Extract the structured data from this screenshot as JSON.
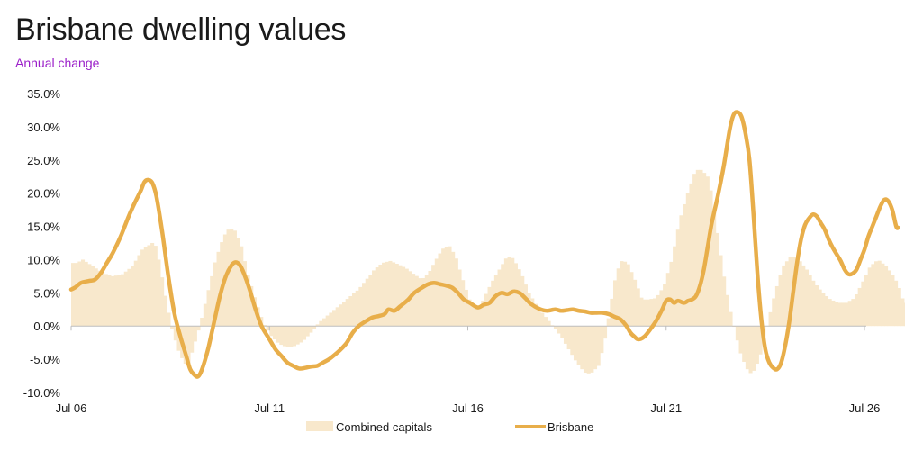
{
  "colors": {
    "brisbane": "#E8AE4A",
    "combined": "#F8E8CC",
    "subtitle": "#9B1FC9",
    "zero_line": "#BDBDBD",
    "axis_tick": "#BDBDBD"
  },
  "chart_data": {
    "type": "line",
    "title": "Brisbane dwelling values",
    "subtitle": "Annual change",
    "x_ticks": [
      "Jul 06",
      "Jul 11",
      "Jul 16",
      "Jul 21",
      "Jul 26"
    ],
    "x_range": [
      "Jul 06",
      "Jul 26"
    ],
    "x_unit": "years since Jul 06",
    "y_ticks": [
      "35.0%",
      "30.0%",
      "25.0%",
      "20.0%",
      "15.0%",
      "10.0%",
      "5.0%",
      "0.0%",
      "-5.0%",
      "-10.0%"
    ],
    "ylim": [
      -10,
      35
    ],
    "grid": false,
    "legend_position": "bottom",
    "series": [
      {
        "name": "Combined capitals",
        "style": "monthly bars",
        "points": [
          [
            0,
            9.5
          ],
          [
            0.1,
            9.5
          ],
          [
            0.25,
            10
          ],
          [
            0.5,
            9
          ],
          [
            0.75,
            8
          ],
          [
            1,
            7.5
          ],
          [
            1.25,
            7.8
          ],
          [
            1.5,
            9
          ],
          [
            1.75,
            11.5
          ],
          [
            2,
            12.5
          ],
          [
            2.1,
            12
          ],
          [
            2.2,
            9
          ],
          [
            2.35,
            4
          ],
          [
            2.5,
            -0.5
          ],
          [
            2.65,
            -3.5
          ],
          [
            2.8,
            -5.5
          ],
          [
            2.9,
            -6
          ],
          [
            3,
            -4
          ],
          [
            3.2,
            0
          ],
          [
            3.4,
            5
          ],
          [
            3.6,
            10
          ],
          [
            3.8,
            13.5
          ],
          [
            3.95,
            14.8
          ],
          [
            4.1,
            14.3
          ],
          [
            4.25,
            12
          ],
          [
            4.4,
            8
          ],
          [
            4.6,
            4
          ],
          [
            4.8,
            0.5
          ],
          [
            5,
            -1.5
          ],
          [
            5.2,
            -2.7
          ],
          [
            5.4,
            -3.2
          ],
          [
            5.6,
            -3
          ],
          [
            5.8,
            -2.3
          ],
          [
            6,
            -1
          ],
          [
            6.2,
            0.5
          ],
          [
            6.4,
            1.5
          ],
          [
            6.6,
            2.5
          ],
          [
            6.8,
            3.5
          ],
          [
            7,
            4.5
          ],
          [
            7.2,
            5.5
          ],
          [
            7.4,
            7
          ],
          [
            7.6,
            8.5
          ],
          [
            7.8,
            9.5
          ],
          [
            8,
            9.8
          ],
          [
            8.2,
            9.3
          ],
          [
            8.4,
            8.7
          ],
          [
            8.6,
            7.8
          ],
          [
            8.8,
            7
          ],
          [
            9,
            8.3
          ],
          [
            9.2,
            10.5
          ],
          [
            9.35,
            11.8
          ],
          [
            9.5,
            12
          ],
          [
            9.65,
            10.5
          ],
          [
            9.8,
            7.5
          ],
          [
            10,
            4
          ],
          [
            10.2,
            2.5
          ],
          [
            10.35,
            4
          ],
          [
            10.55,
            6.5
          ],
          [
            10.8,
            9
          ],
          [
            10.95,
            10.5
          ],
          [
            11.1,
            10.2
          ],
          [
            11.3,
            8
          ],
          [
            11.5,
            5
          ],
          [
            11.7,
            3
          ],
          [
            11.9,
            1.5
          ],
          [
            12.1,
            0
          ],
          [
            12.3,
            -1.5
          ],
          [
            12.5,
            -3.5
          ],
          [
            12.7,
            -5.5
          ],
          [
            12.9,
            -7
          ],
          [
            13.05,
            -7.2
          ],
          [
            13.25,
            -6
          ],
          [
            13.4,
            -2.5
          ],
          [
            13.55,
            3
          ],
          [
            13.7,
            8
          ],
          [
            13.85,
            10
          ],
          [
            14,
            9.3
          ],
          [
            14.2,
            6.5
          ],
          [
            14.35,
            4
          ],
          [
            14.5,
            4
          ],
          [
            14.7,
            4.2
          ],
          [
            14.9,
            6
          ],
          [
            15.1,
            10
          ],
          [
            15.3,
            16
          ],
          [
            15.5,
            20
          ],
          [
            15.7,
            23.5
          ],
          [
            15.85,
            23.5
          ],
          [
            16,
            22.5
          ],
          [
            16.1,
            20
          ],
          [
            16.25,
            14
          ],
          [
            16.4,
            8
          ],
          [
            16.55,
            3
          ],
          [
            16.7,
            -1
          ],
          [
            16.85,
            -4.5
          ],
          [
            17,
            -6.5
          ],
          [
            17.1,
            -7.2
          ],
          [
            17.2,
            -6.5
          ],
          [
            17.35,
            -4
          ],
          [
            17.5,
            0
          ],
          [
            17.7,
            5
          ],
          [
            17.9,
            9
          ],
          [
            18.1,
            10.5
          ],
          [
            18.3,
            10
          ],
          [
            18.5,
            8.5
          ],
          [
            18.7,
            6.5
          ],
          [
            18.9,
            5
          ],
          [
            19.1,
            4
          ],
          [
            19.3,
            3.5
          ],
          [
            19.5,
            3.5
          ],
          [
            19.7,
            4.2
          ],
          [
            19.9,
            6.5
          ],
          [
            20.1,
            9
          ],
          [
            20.3,
            10
          ],
          [
            20.5,
            9
          ],
          [
            20.7,
            7.5
          ],
          [
            20.85,
            5.5
          ],
          [
            20.95,
            3.5
          ],
          [
            21,
            3.5
          ]
        ]
      },
      {
        "name": "Brisbane",
        "style": "line",
        "points": [
          [
            0,
            5.5
          ],
          [
            0.1,
            5.8
          ],
          [
            0.25,
            6.5
          ],
          [
            0.45,
            6.8
          ],
          [
            0.6,
            7
          ],
          [
            0.75,
            8
          ],
          [
            0.9,
            9.5
          ],
          [
            1.05,
            11
          ],
          [
            1.25,
            13.5
          ],
          [
            1.45,
            16.5
          ],
          [
            1.6,
            18.5
          ],
          [
            1.75,
            20.3
          ],
          [
            1.85,
            21.7
          ],
          [
            1.95,
            22
          ],
          [
            2.05,
            21.5
          ],
          [
            2.15,
            19.5
          ],
          [
            2.3,
            14
          ],
          [
            2.45,
            7.5
          ],
          [
            2.6,
            2
          ],
          [
            2.75,
            -1.5
          ],
          [
            2.9,
            -4.5
          ],
          [
            3,
            -6.5
          ],
          [
            3.1,
            -7.3
          ],
          [
            3.2,
            -7.6
          ],
          [
            3.3,
            -6.5
          ],
          [
            3.45,
            -3.5
          ],
          [
            3.6,
            0.5
          ],
          [
            3.75,
            4.5
          ],
          [
            3.9,
            7.5
          ],
          [
            4.05,
            9.2
          ],
          [
            4.15,
            9.6
          ],
          [
            4.25,
            9.2
          ],
          [
            4.35,
            8
          ],
          [
            4.5,
            5.5
          ],
          [
            4.65,
            2.5
          ],
          [
            4.8,
            0
          ],
          [
            5,
            -2
          ],
          [
            5.15,
            -3.5
          ],
          [
            5.3,
            -4.5
          ],
          [
            5.45,
            -5.5
          ],
          [
            5.6,
            -6
          ],
          [
            5.75,
            -6.4
          ],
          [
            5.9,
            -6.3
          ],
          [
            6.05,
            -6.1
          ],
          [
            6.2,
            -6
          ],
          [
            6.35,
            -5.5
          ],
          [
            6.5,
            -5
          ],
          [
            6.65,
            -4.3
          ],
          [
            6.8,
            -3.5
          ],
          [
            6.95,
            -2.5
          ],
          [
            7.1,
            -1
          ],
          [
            7.25,
            0
          ],
          [
            7.45,
            0.8
          ],
          [
            7.6,
            1.3
          ],
          [
            7.75,
            1.5
          ],
          [
            7.9,
            1.8
          ],
          [
            8,
            2.5
          ],
          [
            8.15,
            2.3
          ],
          [
            8.3,
            3
          ],
          [
            8.5,
            4
          ],
          [
            8.65,
            5
          ],
          [
            8.85,
            5.8
          ],
          [
            9,
            6.3
          ],
          [
            9.15,
            6.5
          ],
          [
            9.3,
            6.3
          ],
          [
            9.45,
            6.1
          ],
          [
            9.6,
            5.8
          ],
          [
            9.75,
            5
          ],
          [
            9.9,
            4
          ],
          [
            10.05,
            3.5
          ],
          [
            10.25,
            2.8
          ],
          [
            10.4,
            3.2
          ],
          [
            10.55,
            3.5
          ],
          [
            10.7,
            4.5
          ],
          [
            10.85,
            5
          ],
          [
            11,
            4.8
          ],
          [
            11.15,
            5.2
          ],
          [
            11.3,
            5
          ],
          [
            11.45,
            4.2
          ],
          [
            11.6,
            3.3
          ],
          [
            11.8,
            2.6
          ],
          [
            12,
            2.3
          ],
          [
            12.2,
            2.5
          ],
          [
            12.35,
            2.3
          ],
          [
            12.5,
            2.4
          ],
          [
            12.65,
            2.5
          ],
          [
            12.8,
            2.3
          ],
          [
            12.95,
            2.2
          ],
          [
            13.1,
            2
          ],
          [
            13.25,
            2
          ],
          [
            13.4,
            2
          ],
          [
            13.55,
            1.8
          ],
          [
            13.7,
            1.4
          ],
          [
            13.85,
            1
          ],
          [
            14,
            0
          ],
          [
            14.1,
            -1
          ],
          [
            14.2,
            -1.6
          ],
          [
            14.3,
            -2
          ],
          [
            14.45,
            -1.6
          ],
          [
            14.6,
            -0.5
          ],
          [
            14.75,
            0.8
          ],
          [
            14.9,
            2.5
          ],
          [
            15,
            3.8
          ],
          [
            15.1,
            4
          ],
          [
            15.2,
            3.5
          ],
          [
            15.3,
            3.8
          ],
          [
            15.45,
            3.5
          ],
          [
            15.55,
            3.8
          ],
          [
            15.65,
            4
          ],
          [
            15.75,
            4.5
          ],
          [
            15.85,
            6
          ],
          [
            15.95,
            8.5
          ],
          [
            16.05,
            12
          ],
          [
            16.15,
            15.5
          ],
          [
            16.3,
            19.5
          ],
          [
            16.45,
            24
          ],
          [
            16.6,
            29.5
          ],
          [
            16.7,
            31.8
          ],
          [
            16.8,
            32.2
          ],
          [
            16.9,
            31.5
          ],
          [
            17,
            29
          ],
          [
            17.1,
            25
          ],
          [
            17.2,
            17
          ],
          [
            17.3,
            8
          ],
          [
            17.4,
            1
          ],
          [
            17.5,
            -3.5
          ],
          [
            17.6,
            -5.5
          ],
          [
            17.7,
            -6.3
          ],
          [
            17.8,
            -6.5
          ],
          [
            17.9,
            -5.5
          ],
          [
            18,
            -3
          ],
          [
            18.1,
            0.5
          ],
          [
            18.2,
            5
          ],
          [
            18.3,
            9.5
          ],
          [
            18.4,
            13
          ],
          [
            18.5,
            15.2
          ],
          [
            18.6,
            16.2
          ],
          [
            18.7,
            16.8
          ],
          [
            18.8,
            16.5
          ],
          [
            18.9,
            15.5
          ],
          [
            19,
            14.5
          ],
          [
            19.1,
            13
          ],
          [
            19.2,
            11.8
          ],
          [
            19.3,
            10.8
          ],
          [
            19.4,
            9.8
          ],
          [
            19.5,
            8.5
          ],
          [
            19.6,
            7.8
          ],
          [
            19.7,
            7.9
          ],
          [
            19.8,
            8.5
          ],
          [
            19.9,
            10
          ],
          [
            20,
            11.5
          ],
          [
            20.1,
            13.5
          ],
          [
            20.2,
            15
          ],
          [
            20.3,
            16.5
          ],
          [
            20.4,
            18
          ],
          [
            20.5,
            19
          ],
          [
            20.6,
            18.8
          ],
          [
            20.7,
            17.5
          ],
          [
            20.8,
            15
          ],
          [
            20.85,
            14.8
          ]
        ]
      }
    ]
  }
}
